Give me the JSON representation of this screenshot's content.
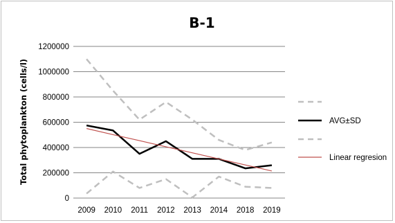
{
  "chart_data": {
    "type": "line",
    "title": "B-1",
    "ylabel": "Total phytoplankton  (cells/l)",
    "xlabel": "",
    "categories": [
      "2009",
      "2010",
      "2011",
      "2012",
      "2013",
      "2014",
      "2018",
      "2019"
    ],
    "ylim": [
      0,
      1200000
    ],
    "y_ticks": [
      "0",
      "200000",
      "400000",
      "600000",
      "800000",
      "1000000",
      "1200000"
    ],
    "y_tick_values": [
      0,
      200000,
      400000,
      600000,
      800000,
      1000000,
      1200000
    ],
    "grid": "horizontal",
    "legend_position": "right",
    "series": [
      {
        "key": "upper",
        "name": "",
        "style": "dashed",
        "color": "#bfbfbf",
        "values": [
          1100000,
          850000,
          620000,
          760000,
          620000,
          460000,
          380000,
          440000
        ]
      },
      {
        "key": "avg",
        "name": "AVG±SD",
        "style": "solid",
        "color": "#000000",
        "values": [
          575000,
          535000,
          350000,
          450000,
          310000,
          310000,
          235000,
          260000
        ]
      },
      {
        "key": "lower",
        "name": "",
        "style": "dashed",
        "color": "#bfbfbf",
        "values": [
          35000,
          210000,
          80000,
          150000,
          5000,
          170000,
          90000,
          80000
        ]
      },
      {
        "key": "regression",
        "name": "Linear regresion",
        "style": "solid",
        "color": "#c0504d",
        "values": [
          550000,
          502000,
          454000,
          406000,
          358000,
          310000,
          262000,
          214000
        ]
      }
    ]
  }
}
